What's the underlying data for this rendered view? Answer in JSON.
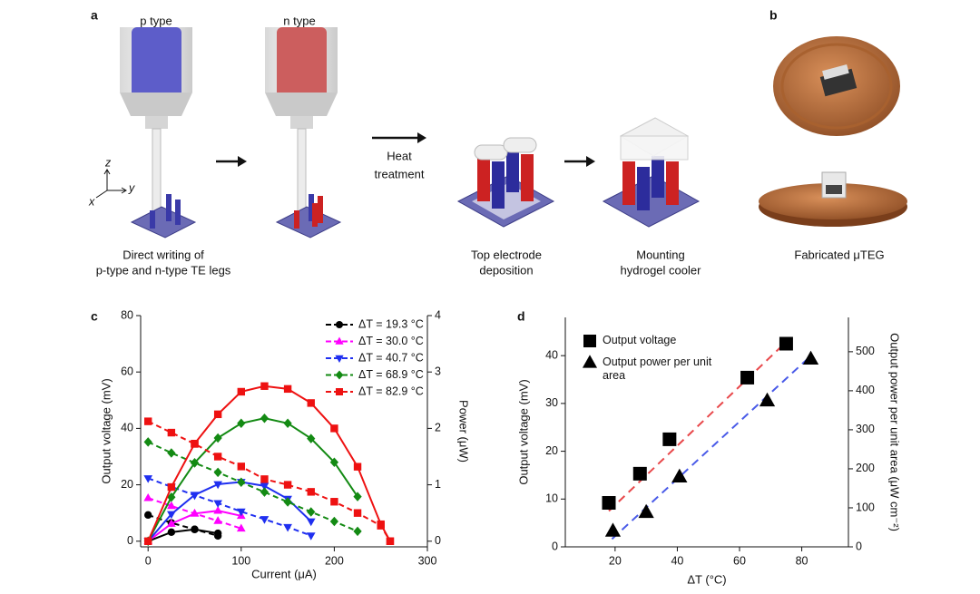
{
  "figure": {
    "labels": [
      "a",
      "b",
      "c",
      "d"
    ],
    "syringe_labels": [
      "p type",
      "n type"
    ],
    "axes_glyph": [
      "z",
      "y",
      "x"
    ],
    "heat_treatment": [
      "Heat",
      "treatment"
    ],
    "captions": [
      [
        "Direct writing of",
        "p-type and n-type TE legs"
      ],
      [
        "Top electrode",
        "deposition"
      ],
      [
        "Mounting",
        "hydrogel cooler"
      ],
      [
        "Fabricated μTEG"
      ]
    ]
  },
  "chart_data": [
    {
      "type": "line",
      "x_label": "Current (μA)",
      "y_label": "Output voltage (mV)",
      "y2_label": "Power (μW)",
      "xlim": [
        -8,
        300
      ],
      "xticks": [
        0,
        100,
        200,
        300
      ],
      "ylim": [
        -2,
        80
      ],
      "yticks": [
        0,
        20,
        40,
        60,
        80
      ],
      "y2lim": [
        -0.1,
        4
      ],
      "y2ticks": [
        0,
        1,
        2,
        3,
        4
      ],
      "legend": "top-right",
      "series": [
        {
          "name": "ΔT = 19.3 °C",
          "color": "#000000",
          "marker": "circle",
          "x": [
            0,
            25,
            50,
            75
          ],
          "values": [
            9.3,
            6.5,
            4.2,
            1.9
          ],
          "power": [
            0,
            0.16,
            0.21,
            0.14
          ]
        },
        {
          "name": "ΔT = 30.0 °C",
          "color": "#ff00ff",
          "marker": "triangle-up",
          "x": [
            0,
            25,
            50,
            75,
            100
          ],
          "values": [
            15.3,
            12.5,
            9.8,
            7.2,
            4.5
          ],
          "power": [
            0,
            0.31,
            0.49,
            0.54,
            0.45
          ]
        },
        {
          "name": "ΔT = 40.7 °C",
          "color": "#1f2ff0",
          "marker": "triangle-down",
          "x": [
            0,
            25,
            50,
            75,
            100,
            125,
            150,
            175
          ],
          "values": [
            22.3,
            19.3,
            16.3,
            13.5,
            10.5,
            7.8,
            5,
            2
          ],
          "power": [
            0,
            0.48,
            0.82,
            1.01,
            1.05,
            0.98,
            0.75,
            0.35
          ]
        },
        {
          "name": "ΔT = 68.9 °C",
          "color": "#138a13",
          "marker": "diamond",
          "x": [
            0,
            25,
            50,
            75,
            100,
            125,
            150,
            175,
            200,
            225
          ],
          "values": [
            35.2,
            31.3,
            27.8,
            24.4,
            20.9,
            17.4,
            13.9,
            10.4,
            7,
            3.5
          ],
          "power": [
            0,
            0.78,
            1.39,
            1.83,
            2.09,
            2.18,
            2.09,
            1.82,
            1.4,
            0.79
          ]
        },
        {
          "name": "ΔT = 82.9 °C",
          "color": "#ee1111",
          "marker": "square",
          "x": [
            0,
            25,
            50,
            75,
            100,
            125,
            150,
            175,
            200,
            225,
            250,
            260
          ],
          "values": [
            42.5,
            38.5,
            34.5,
            30,
            26.5,
            22,
            20,
            17.5,
            14,
            10,
            5.5,
            0
          ],
          "power": [
            0,
            0.96,
            1.73,
            2.25,
            2.65,
            2.75,
            2.7,
            2.45,
            2,
            1.32,
            0.3,
            0
          ]
        }
      ]
    },
    {
      "type": "scatter",
      "x_label": "ΔT (°C)",
      "y_label": "Output voltage (mV)",
      "y2_label": "Output power per unit area (μW cm⁻²)",
      "xlim": [
        4,
        95
      ],
      "xticks": [
        20,
        40,
        60,
        80
      ],
      "ylim": [
        0,
        48
      ],
      "yticks": [
        0,
        10,
        20,
        30,
        40
      ],
      "y2lim": [
        0,
        588
      ],
      "y2ticks": [
        0,
        100,
        200,
        300,
        400,
        500
      ],
      "legend": "top-left",
      "series": [
        {
          "name": "Output voltage",
          "color": "#000000",
          "marker": "square",
          "x": [
            18,
            28,
            37.5,
            62.5,
            75
          ],
          "values": [
            9.2,
            15.3,
            22.5,
            35.4,
            42.5
          ],
          "fit_color": "#e8474a",
          "fit": {
            "x": [
              18,
              76
            ],
            "values": [
              7.5,
              43.5
            ]
          }
        },
        {
          "name": "Output power per unit area",
          "color": "#000000",
          "marker": "triangle-up",
          "axis": "y2",
          "x": [
            19.3,
            30,
            40.7,
            68.9,
            82.9
          ],
          "values": [
            40,
            88,
            179,
            374,
            481
          ],
          "fit_color": "#4a5be8",
          "fit": {
            "x": [
              19,
              83
            ],
            "values": [
              20,
              490
            ]
          }
        }
      ]
    }
  ]
}
